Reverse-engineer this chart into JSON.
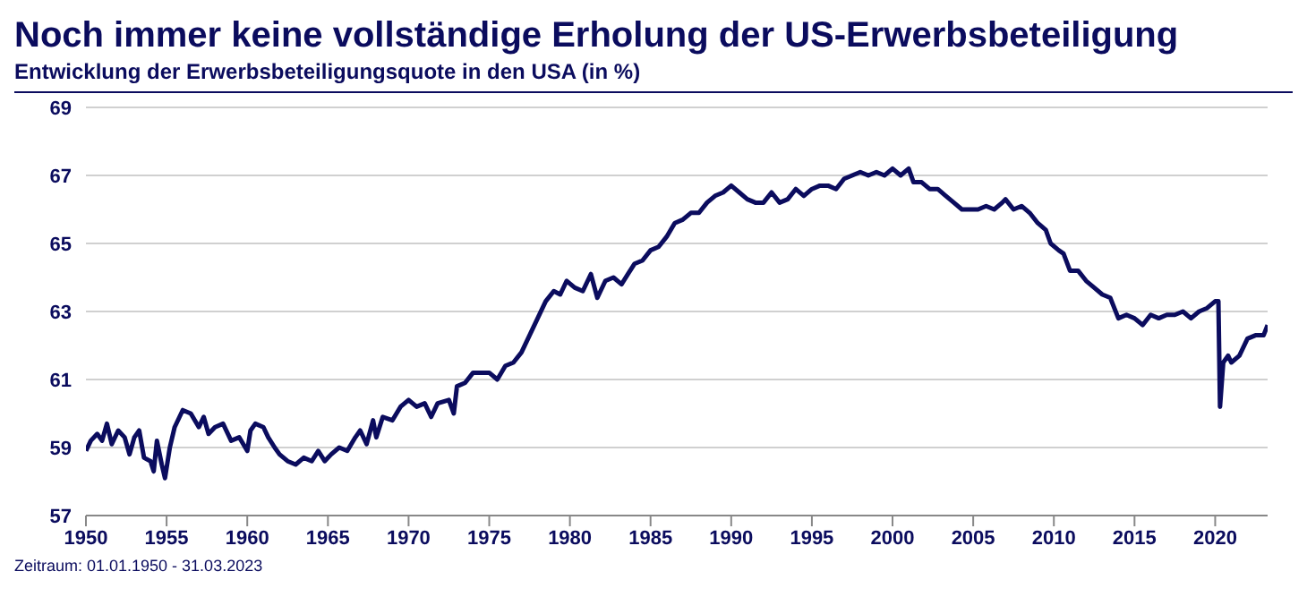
{
  "chart_data": {
    "type": "line",
    "title": "Noch immer keine vollständige Erholung der US-Erwerbsbeteiligung",
    "subtitle": "Entwicklung der Erwerbsbeteiligungsquote in den USA (in %)",
    "annotations": [
      "Zeitraum: 01.01.1950 - 31.03.2023"
    ],
    "x": [
      1950,
      1950.3,
      1950.7,
      1951,
      1951.3,
      1951.6,
      1952,
      1952.4,
      1952.7,
      1953,
      1953.3,
      1953.6,
      1954,
      1954.2,
      1954.4,
      1954.7,
      1954.9,
      1955.2,
      1955.5,
      1956,
      1956.5,
      1957,
      1957.3,
      1957.6,
      1958,
      1958.5,
      1959,
      1959.5,
      1960,
      1960.2,
      1960.5,
      1961,
      1961.3,
      1961.7,
      1962,
      1962.5,
      1963,
      1963.5,
      1964,
      1964.4,
      1964.8,
      1965.2,
      1965.7,
      1966.2,
      1966.7,
      1967,
      1967.4,
      1967.8,
      1968,
      1968.4,
      1969,
      1969.5,
      1970,
      1970.5,
      1971,
      1971.4,
      1971.8,
      1972.5,
      1972.8,
      1973,
      1973.5,
      1974,
      1974.5,
      1975,
      1975.5,
      1976,
      1976.5,
      1977,
      1977.5,
      1978,
      1978.5,
      1979,
      1979.4,
      1979.8,
      1980.3,
      1980.8,
      1981.3,
      1981.7,
      1982.2,
      1982.7,
      1983.2,
      1983.6,
      1984,
      1984.5,
      1985,
      1985.5,
      1986,
      1986.5,
      1987,
      1987.5,
      1988,
      1988.5,
      1989,
      1989.5,
      1990,
      1990.5,
      1991,
      1991.5,
      1992,
      1992.5,
      1993,
      1993.5,
      1994,
      1994.5,
      1995,
      1995.5,
      1996,
      1996.5,
      1997,
      1997.5,
      1998,
      1998.5,
      1999,
      1999.5,
      2000,
      2000.5,
      2001,
      2001.3,
      2001.8,
      2002.3,
      2002.8,
      2003.3,
      2003.8,
      2004.3,
      2004.8,
      2005.3,
      2005.8,
      2006.3,
      2006.8,
      2007,
      2007.5,
      2008,
      2008.5,
      2009,
      2009.5,
      2009.8,
      2010.3,
      2010.6,
      2011,
      2011.5,
      2012,
      2012.5,
      2013,
      2013.5,
      2014,
      2014.5,
      2015,
      2015.5,
      2016,
      2016.5,
      2017,
      2017.5,
      2018,
      2018.5,
      2019,
      2019.5,
      2020,
      2020.2,
      2020.3,
      2020.5,
      2020.8,
      2021,
      2021.5,
      2022,
      2022.5,
      2023,
      2023.25
    ],
    "series": [
      {
        "color": "#0b0c5e",
        "values": [
          58.9,
          59.2,
          59.4,
          59.2,
          59.7,
          59.1,
          59.5,
          59.3,
          58.8,
          59.3,
          59.5,
          58.7,
          58.6,
          58.3,
          59.2,
          58.5,
          58.1,
          59.0,
          59.6,
          60.1,
          60.0,
          59.6,
          59.9,
          59.4,
          59.6,
          59.7,
          59.2,
          59.3,
          58.9,
          59.5,
          59.7,
          59.6,
          59.3,
          59.0,
          58.8,
          58.6,
          58.5,
          58.7,
          58.6,
          58.9,
          58.6,
          58.8,
          59.0,
          58.9,
          59.3,
          59.5,
          59.1,
          59.8,
          59.3,
          59.9,
          59.8,
          60.2,
          60.4,
          60.2,
          60.3,
          59.9,
          60.3,
          60.4,
          60.0,
          60.8,
          60.9,
          61.2,
          61.2,
          61.2,
          61.0,
          61.4,
          61.5,
          61.8,
          62.3,
          62.8,
          63.3,
          63.6,
          63.5,
          63.9,
          63.7,
          63.6,
          64.1,
          63.4,
          63.9,
          64.0,
          63.8,
          64.1,
          64.4,
          64.5,
          64.8,
          64.9,
          65.2,
          65.6,
          65.7,
          65.9,
          65.9,
          66.2,
          66.4,
          66.5,
          66.7,
          66.5,
          66.3,
          66.2,
          66.2,
          66.5,
          66.2,
          66.3,
          66.6,
          66.4,
          66.6,
          66.7,
          66.7,
          66.6,
          66.9,
          67.0,
          67.1,
          67.0,
          67.1,
          67.0,
          67.2,
          67.0,
          67.2,
          66.8,
          66.8,
          66.6,
          66.6,
          66.4,
          66.2,
          66.0,
          66.0,
          66.0,
          66.1,
          66.0,
          66.2,
          66.3,
          66.0,
          66.1,
          65.9,
          65.6,
          65.4,
          65.0,
          64.8,
          64.7,
          64.2,
          64.2,
          63.9,
          63.7,
          63.5,
          63.4,
          62.8,
          62.9,
          62.8,
          62.6,
          62.9,
          62.8,
          62.9,
          62.9,
          63.0,
          62.8,
          63.0,
          63.1,
          63.3,
          63.3,
          60.2,
          61.5,
          61.7,
          61.5,
          61.7,
          62.2,
          62.3,
          62.3,
          62.6
        ]
      }
    ],
    "xlim": [
      1950,
      2023.25
    ],
    "xticks": [
      1950,
      1955,
      1960,
      1965,
      1970,
      1975,
      1980,
      1985,
      1990,
      1995,
      2000,
      2005,
      2010,
      2015,
      2020
    ],
    "ylim": [
      57,
      69
    ],
    "yticks": [
      57,
      59,
      61,
      63,
      65,
      67,
      69
    ],
    "grid": "y",
    "marker": "none",
    "line_style": "solid"
  }
}
